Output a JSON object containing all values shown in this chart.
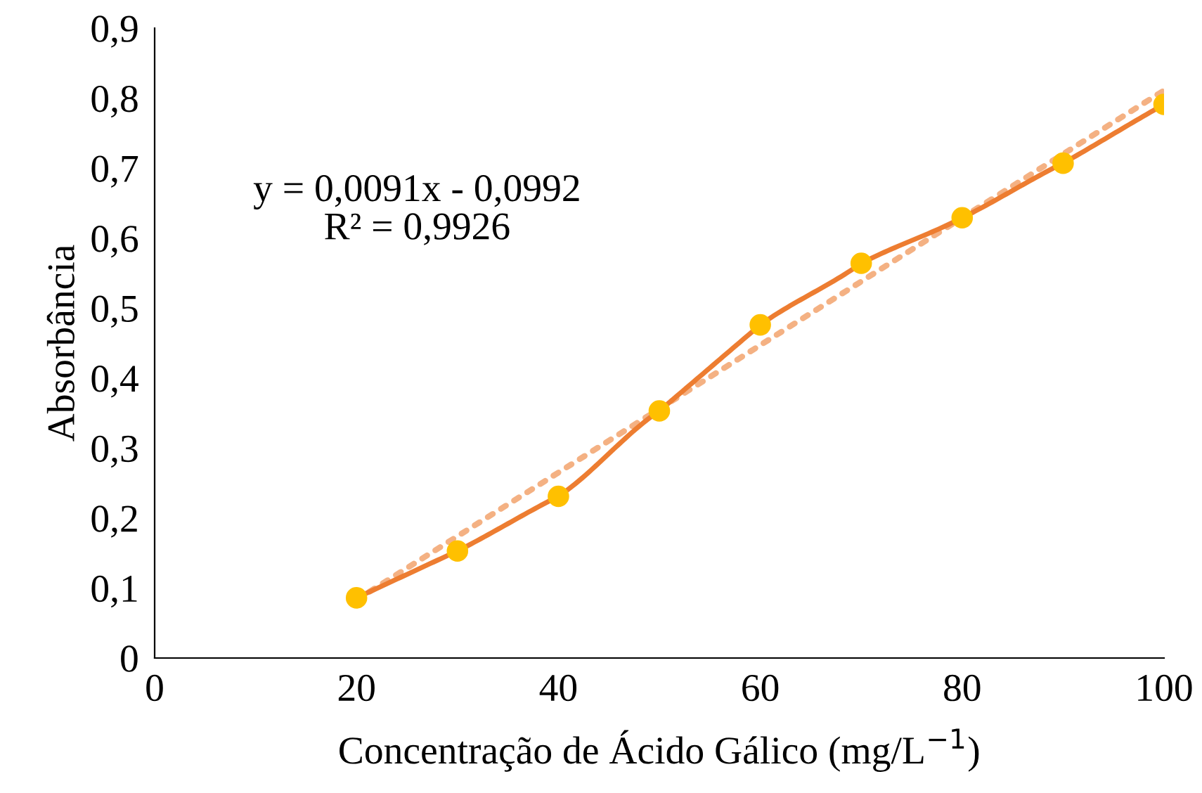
{
  "chart_data": {
    "type": "line",
    "xlabel": "Concentração de Ácido Gálico (mg/L$^{−1}$)",
    "ylabel": "Absorbância",
    "xlim": [
      0,
      100
    ],
    "xticks": [
      0,
      20,
      40,
      60,
      80,
      100
    ],
    "ylim": [
      0,
      0.9
    ],
    "yticks": [
      0,
      {
        "value": 0.1,
        "label": "0,1"
      },
      {
        "value": 0.2,
        "label": "0,2"
      },
      {
        "value": 0.3,
        "label": "0,3"
      },
      {
        "value": 0.4,
        "label": "0,4"
      },
      {
        "value": 0.5,
        "label": "0,5"
      },
      {
        "value": 0.6,
        "label": "0,6"
      },
      {
        "value": 0.7,
        "label": "0,7"
      },
      {
        "value": 0.8,
        "label": "0,8"
      },
      {
        "value": 0.9,
        "label": "0,9"
      }
    ],
    "grid": false,
    "legend": false,
    "series": [
      {
        "color": "#ed7d31",
        "marker": "circle",
        "colors": [
          "#ffc000",
          "#ffc000",
          "#ffc000",
          "#ffc000",
          "#ffc000",
          "#ffc000",
          "#ffc000",
          "#ffc000",
          "#ffc000"
        ],
        "line_style": "solid",
        "x": [
          20,
          30,
          40,
          50,
          60,
          70,
          80,
          90,
          100
        ],
        "values": [
          0.086,
          0.153,
          0.231,
          0.353,
          0.476,
          0.564,
          0.629,
          0.707,
          0.791
        ]
      },
      {
        "type": "line",
        "color": "#f4b183",
        "marker": "none",
        "line_style": "dotted",
        "x": [
          20,
          100
        ],
        "values": [
          0.083,
          0.811
        ]
      }
    ],
    "annotations": [
      "y = 0,0091x - 0,0992\nR² = 0,9926"
    ]
  }
}
